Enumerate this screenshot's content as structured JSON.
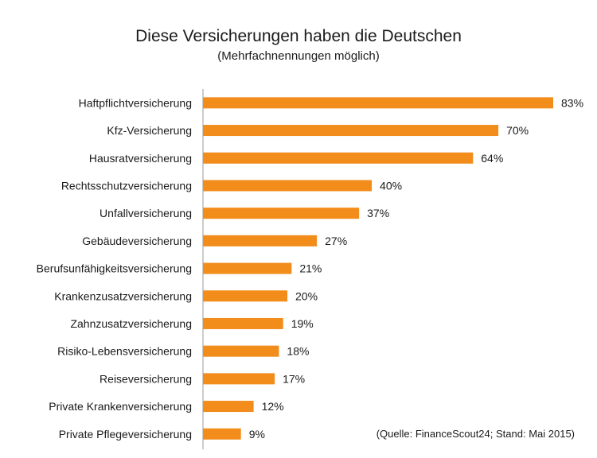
{
  "title": "Diese Versicherungen haben die Deutschen",
  "subtitle": "(Mehrfachnennungen möglich)",
  "source": "(Quelle: FinanceScout24; Stand: Mai 2015)",
  "colors": {
    "bar": "#F28C1A",
    "axis": "#999999"
  },
  "chart_data": {
    "type": "bar",
    "orientation": "horizontal",
    "title": "Diese Versicherungen haben die Deutschen",
    "subtitle": "(Mehrfachnennungen möglich)",
    "categories": [
      "Haftpflichtversicherung",
      "Kfz-Versicherung",
      "Hausratversicherung",
      "Rechtsschutzversicherung",
      "Unfallversicherung",
      "Gebäudeversicherung",
      "Berufsunfähigkeitsversicherung",
      "Krankenzusatzversicherung",
      "Zahnzusatzversicherung",
      "Risiko-Lebensversicherung",
      "Reiseversicherung",
      "Private Krankenversicherung",
      "Private Pflegeversicherung"
    ],
    "values": [
      83,
      70,
      64,
      40,
      37,
      27,
      21,
      20,
      19,
      18,
      17,
      12,
      9
    ],
    "value_labels": [
      "83%",
      "70%",
      "64%",
      "40%",
      "37%",
      "27%",
      "21%",
      "20%",
      "19%",
      "18%",
      "17%",
      "12%",
      "9%"
    ],
    "unit": "%",
    "xlim": [
      0,
      83
    ],
    "grid": false,
    "legend": "none"
  }
}
